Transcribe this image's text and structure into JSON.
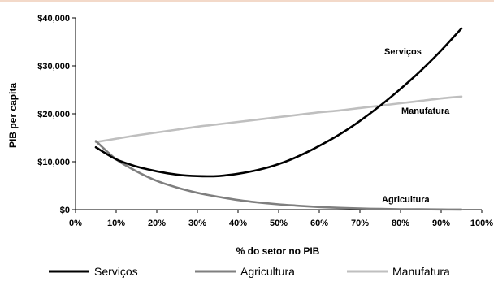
{
  "chart_data": {
    "type": "line",
    "title": "",
    "xlabel": "% do setor no PIB",
    "ylabel": "PIB per capita",
    "xlim": [
      0,
      100
    ],
    "ylim": [
      0,
      40000
    ],
    "grid": false,
    "legend_position": "bottom",
    "x_ticks": [
      "0%",
      "10%",
      "20%",
      "30%",
      "40%",
      "50%",
      "60%",
      "70%",
      "80%",
      "90%",
      "100%"
    ],
    "y_ticks": [
      "$0",
      "$10,000",
      "$20,000",
      "$30,000",
      "$40,000"
    ],
    "x_tick_values": [
      0,
      10,
      20,
      30,
      40,
      50,
      60,
      70,
      80,
      90,
      100
    ],
    "y_tick_values": [
      0,
      10000,
      20000,
      30000,
      40000
    ],
    "series": [
      {
        "name": "Serviços",
        "color": "#000000",
        "x": [
          5,
          10,
          15,
          20,
          25,
          30,
          35,
          40,
          45,
          50,
          55,
          60,
          65,
          70,
          75,
          80,
          85,
          90,
          95
        ],
        "values": [
          13000,
          10500,
          9000,
          8000,
          7300,
          7000,
          7000,
          7500,
          8300,
          9500,
          11200,
          13300,
          15700,
          18500,
          21700,
          25200,
          29000,
          33200,
          37800
        ]
      },
      {
        "name": "Agricultura",
        "color": "#7f7f7f",
        "x": [
          5,
          10,
          15,
          20,
          25,
          30,
          35,
          40,
          45,
          50,
          55,
          60,
          65,
          70,
          75,
          80,
          85,
          90,
          95
        ],
        "values": [
          14300,
          10500,
          8000,
          6000,
          4600,
          3500,
          2700,
          2000,
          1500,
          1100,
          800,
          550,
          380,
          250,
          150,
          90,
          60,
          30,
          10
        ]
      },
      {
        "name": "Manufatura",
        "color": "#bfbfbf",
        "x": [
          5,
          10,
          15,
          20,
          25,
          30,
          35,
          40,
          45,
          50,
          55,
          60,
          65,
          70,
          75,
          80,
          85,
          90,
          95
        ],
        "values": [
          14100,
          14800,
          15500,
          16100,
          16700,
          17300,
          17800,
          18300,
          18800,
          19300,
          19800,
          20300,
          20700,
          21200,
          21700,
          22200,
          22700,
          23200,
          23600
        ]
      }
    ],
    "annotations": [
      {
        "text": "Serviços",
        "series": "Serviços"
      },
      {
        "text": "Manufatura",
        "series": "Manufatura"
      },
      {
        "text": "Agricultura",
        "series": "Agricultura"
      }
    ]
  }
}
